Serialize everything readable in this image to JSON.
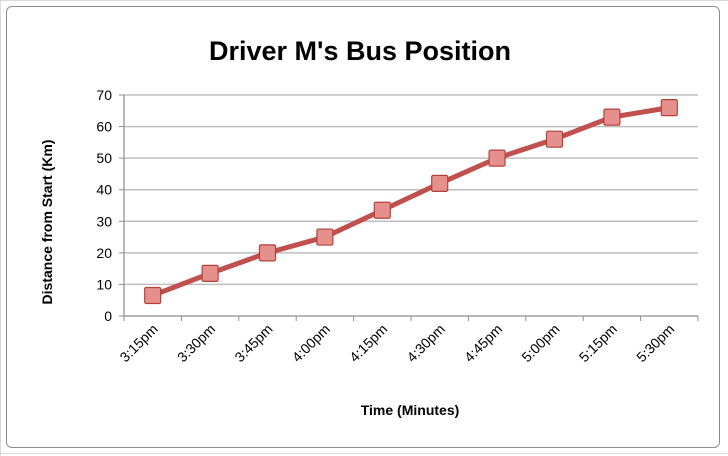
{
  "chart_data": {
    "type": "line",
    "title": "Driver M's Bus Position",
    "xlabel": "Time (Minutes)",
    "ylabel": "Distance from Start (Km)",
    "categories": [
      "3:15pm",
      "3:30pm",
      "3:45pm",
      "4:00pm",
      "4:15pm",
      "4:30pm",
      "4:45pm",
      "5:00pm",
      "5:15pm",
      "5:30pm"
    ],
    "series": [
      {
        "name": "Distance",
        "values": [
          6.5,
          13.5,
          20,
          25,
          33.5,
          42,
          50,
          56,
          63,
          66
        ],
        "color": "#c0504d",
        "marker": "square"
      }
    ],
    "ylim": [
      0,
      70
    ],
    "yticks": [
      0,
      10,
      20,
      30,
      40,
      50,
      60,
      70
    ],
    "grid": true,
    "legend": "none"
  }
}
